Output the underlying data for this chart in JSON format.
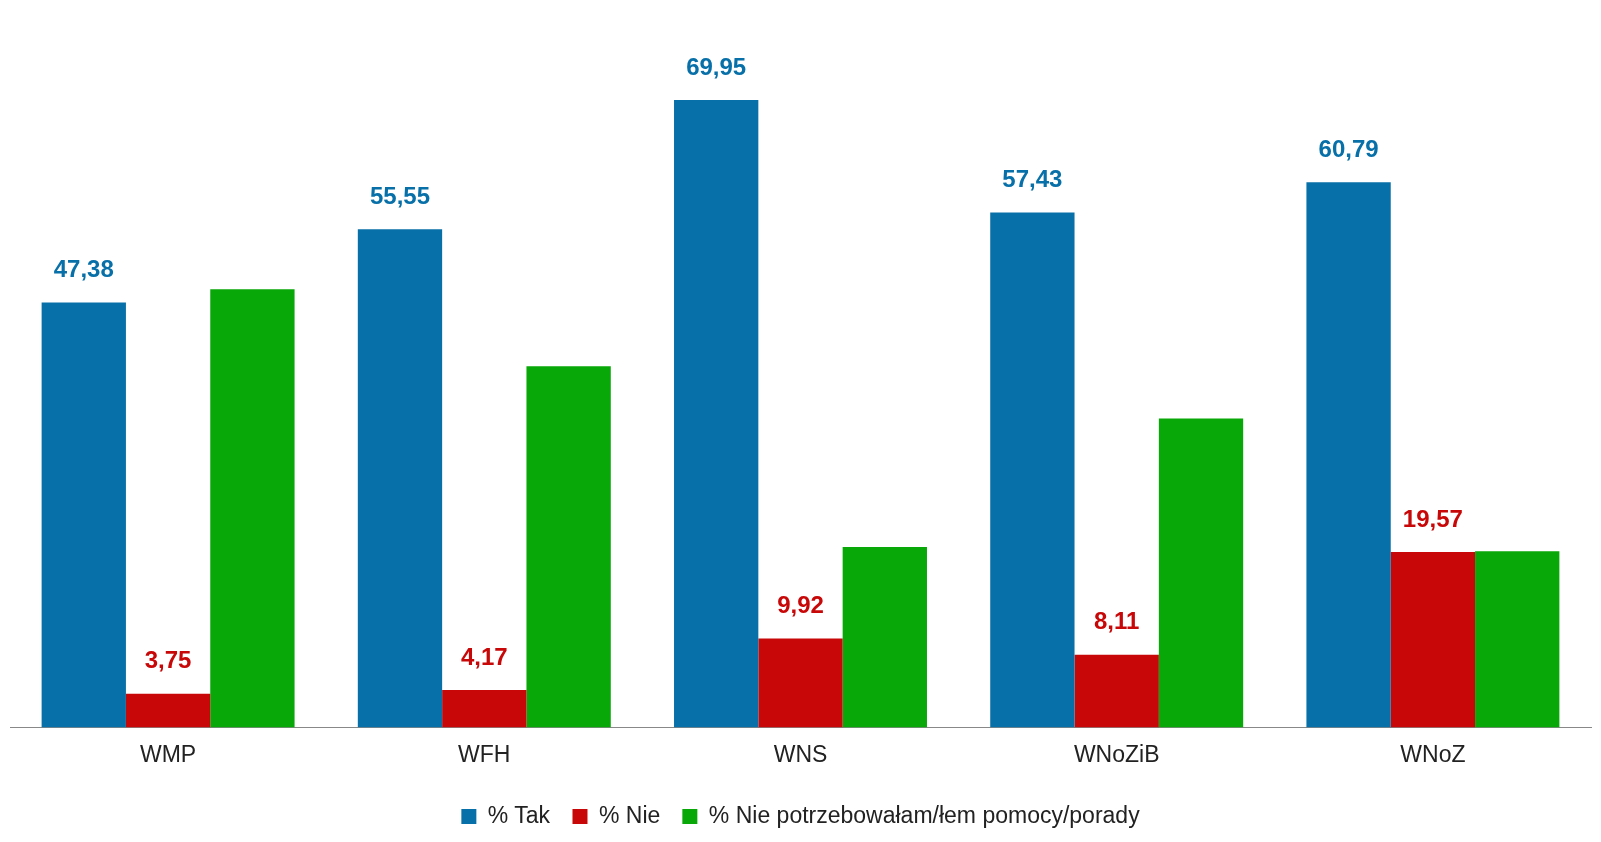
{
  "chart_data": {
    "type": "bar",
    "categories": [
      "WMP",
      "WFH",
      "WNS",
      "WNoZiB",
      "WNoZ"
    ],
    "series": [
      {
        "name": "% Tak",
        "color": "#0870a8",
        "values": [
          47.38,
          55.55,
          69.95,
          57.43,
          60.79
        ],
        "value_labels": [
          "47,38",
          "55,55",
          "69,95",
          "57,43",
          "60,79"
        ]
      },
      {
        "name": "% Nie",
        "color": "#c80808",
        "values": [
          3.75,
          4.17,
          9.92,
          8.11,
          19.57
        ],
        "value_labels": [
          "3,75",
          "4,17",
          "9,92",
          "8,11",
          "19,57"
        ]
      },
      {
        "name": "% Nie potrzebowałam/łem pomocy/porady",
        "color": "#08a808",
        "values": [
          48.87,
          40.28,
          20.13,
          34.46,
          19.64
        ]
      }
    ],
    "legend": "bottom",
    "grid": false
  }
}
